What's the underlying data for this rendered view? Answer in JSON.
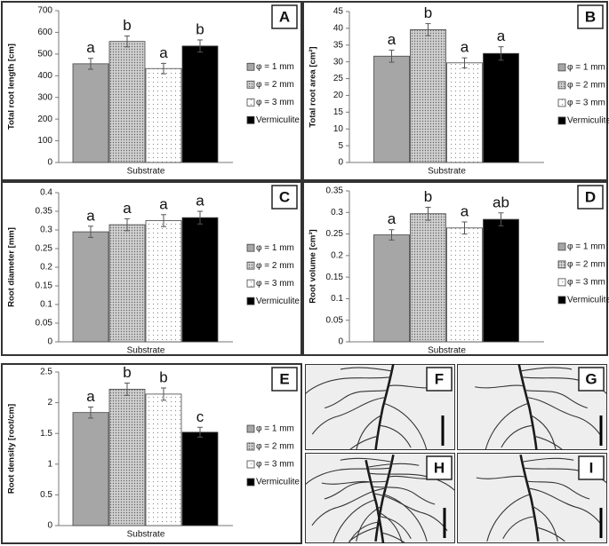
{
  "chart_data": [
    {
      "type": "bar",
      "panel": "A",
      "y_label": "Total root length [cm]",
      "categories": [
        "Substrate"
      ],
      "ylim": [
        0,
        700
      ],
      "yticks": [
        0,
        100,
        200,
        300,
        400,
        500,
        600,
        700
      ],
      "series": [
        {
          "name": "φ = 1 mm",
          "color": "#a6a6a6",
          "pattern": "solid",
          "values": [
            455
          ],
          "errors": [
            25
          ],
          "letters": [
            "a"
          ]
        },
        {
          "name": "φ = 2 mm",
          "color": "#d0d0d0",
          "pattern": "dense-dots",
          "values": [
            558
          ],
          "errors": [
            25
          ],
          "letters": [
            "b"
          ]
        },
        {
          "name": "φ = 3 mm",
          "color": "#ffffff",
          "pattern": "dots",
          "values": [
            433
          ],
          "errors": [
            24
          ],
          "letters": [
            "a"
          ]
        },
        {
          "name": "Vermiculite",
          "color": "#000000",
          "pattern": "solid",
          "values": [
            537
          ],
          "errors": [
            28
          ],
          "letters": [
            "b"
          ]
        }
      ]
    },
    {
      "type": "bar",
      "panel": "B",
      "y_label": "Total root area [cm²]",
      "categories": [
        "Substrate"
      ],
      "ylim": [
        0,
        45
      ],
      "yticks": [
        0,
        5,
        10,
        15,
        20,
        25,
        30,
        35,
        40,
        45
      ],
      "series": [
        {
          "name": "φ = 1 mm",
          "color": "#a6a6a6",
          "pattern": "solid",
          "values": [
            31.7
          ],
          "errors": [
            1.8
          ],
          "letters": [
            "a"
          ]
        },
        {
          "name": "φ = 2 mm",
          "color": "#d0d0d0",
          "pattern": "dense-dots",
          "values": [
            39.6
          ],
          "errors": [
            1.8
          ],
          "letters": [
            "b"
          ]
        },
        {
          "name": "φ = 3 mm",
          "color": "#ffffff",
          "pattern": "dots",
          "values": [
            29.7
          ],
          "errors": [
            1.5
          ],
          "letters": [
            "a"
          ]
        },
        {
          "name": "Vermiculite",
          "color": "#000000",
          "pattern": "solid",
          "values": [
            32.5
          ],
          "errors": [
            2
          ],
          "letters": [
            "a"
          ]
        }
      ]
    },
    {
      "type": "bar",
      "panel": "C",
      "y_label": "Root diameter [mm]",
      "categories": [
        "Substrate"
      ],
      "ylim": [
        0,
        0.4
      ],
      "yticks": [
        0,
        0.05,
        0.1,
        0.15,
        0.2,
        0.25,
        0.3,
        0.35,
        0.4
      ],
      "series": [
        {
          "name": "φ = 1 mm",
          "color": "#a6a6a6",
          "pattern": "solid",
          "values": [
            0.295
          ],
          "errors": [
            0.015
          ],
          "letters": [
            "a"
          ]
        },
        {
          "name": "φ = 2 mm",
          "color": "#d0d0d0",
          "pattern": "dense-dots",
          "values": [
            0.314
          ],
          "errors": [
            0.016
          ],
          "letters": [
            "a"
          ]
        },
        {
          "name": "φ = 3 mm",
          "color": "#ffffff",
          "pattern": "dots",
          "values": [
            0.325
          ],
          "errors": [
            0.016
          ],
          "letters": [
            "a"
          ]
        },
        {
          "name": "Vermiculite",
          "color": "#000000",
          "pattern": "solid",
          "values": [
            0.333
          ],
          "errors": [
            0.017
          ],
          "letters": [
            "a"
          ]
        }
      ]
    },
    {
      "type": "bar",
      "panel": "D",
      "y_label": "Root volume [cm³]",
      "categories": [
        "Substrate"
      ],
      "ylim": [
        0,
        0.35
      ],
      "yticks": [
        0,
        0.05,
        0.1,
        0.15,
        0.2,
        0.25,
        0.3,
        0.35
      ],
      "series": [
        {
          "name": "φ = 1 mm",
          "color": "#a6a6a6",
          "pattern": "solid",
          "values": [
            0.248
          ],
          "errors": [
            0.012
          ],
          "letters": [
            "a"
          ]
        },
        {
          "name": "φ = 2 mm",
          "color": "#d0d0d0",
          "pattern": "dense-dots",
          "values": [
            0.297
          ],
          "errors": [
            0.015
          ],
          "letters": [
            "b"
          ]
        },
        {
          "name": "φ = 3 mm",
          "color": "#ffffff",
          "pattern": "dots",
          "values": [
            0.264
          ],
          "errors": [
            0.014
          ],
          "letters": [
            "a"
          ]
        },
        {
          "name": "Vermiculite",
          "color": "#000000",
          "pattern": "solid",
          "values": [
            0.284
          ],
          "errors": [
            0.015
          ],
          "letters": [
            "ab"
          ]
        }
      ]
    },
    {
      "type": "bar",
      "panel": "E",
      "y_label": "Root density [root/cm]",
      "categories": [
        "Substrate"
      ],
      "ylim": [
        0,
        2.5
      ],
      "yticks": [
        0,
        0.5,
        1,
        1.5,
        2,
        2.5
      ],
      "series": [
        {
          "name": "φ = 1 mm",
          "color": "#a6a6a6",
          "pattern": "solid",
          "values": [
            1.84
          ],
          "errors": [
            0.09
          ],
          "letters": [
            "a"
          ]
        },
        {
          "name": "φ = 2 mm",
          "color": "#d0d0d0",
          "pattern": "dense-dots",
          "values": [
            2.22
          ],
          "errors": [
            0.1
          ],
          "letters": [
            "b"
          ]
        },
        {
          "name": "φ = 3 mm",
          "color": "#ffffff",
          "pattern": "dots",
          "values": [
            2.14
          ],
          "errors": [
            0.1
          ],
          "letters": [
            "b"
          ]
        },
        {
          "name": "Vermiculite",
          "color": "#000000",
          "pattern": "solid",
          "values": [
            1.52
          ],
          "errors": [
            0.08
          ],
          "letters": [
            "c"
          ]
        }
      ]
    }
  ],
  "images": [
    {
      "panel": "F"
    },
    {
      "panel": "G"
    },
    {
      "panel": "H"
    },
    {
      "panel": "I"
    }
  ]
}
